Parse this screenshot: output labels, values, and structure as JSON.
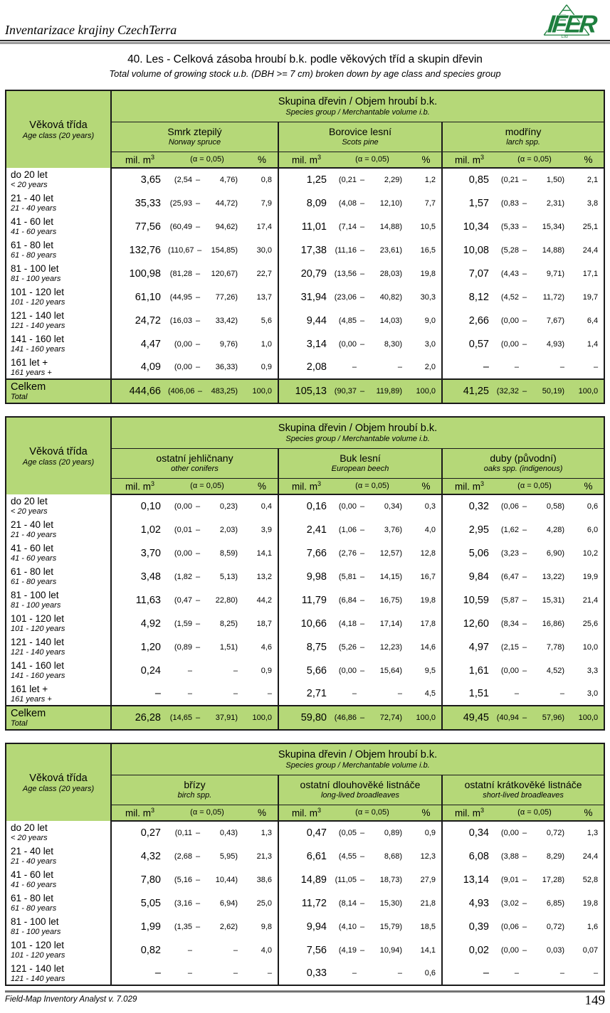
{
  "masthead": {
    "title": "Inventarizace krajiny CzechTerra",
    "logo_text": "IFER",
    "logo_sub": "Ltd"
  },
  "doc": {
    "title": "40. Les - Celková zásoba hroubí b.k. podle věkových tříd a skupin dřevin",
    "subtitle": "Total volume of growing stock u.b. (DBH >= 7 cm) broken down by age class and species group"
  },
  "footer": {
    "left": "Field-Map Inventory Analyst v. 7.029",
    "page_number": "149"
  },
  "colors": {
    "table_green": "#b5d878",
    "logo_green": "#1e7f3e"
  },
  "table_common": {
    "age_header_cs": "Věková třída",
    "age_header_en": "Age class (20 years)",
    "group_header_cs": "Skupina dřevin / Objem hroubí b.k.",
    "group_header_en": "Species group / Merchantable volume i.b.",
    "unit_label": "mil. m",
    "unit_sup": "3",
    "alpha_label": "(α = 0,05)",
    "percent_label": "%",
    "total_cs": "Celkem",
    "total_en": "Total",
    "dash": "–"
  },
  "age_classes": [
    {
      "cs": "do 20 let",
      "en": "< 20 years"
    },
    {
      "cs": "21 - 40 let",
      "en": "21 - 40 years"
    },
    {
      "cs": "41 - 60 let",
      "en": "41 - 60 years"
    },
    {
      "cs": "61 - 80 let",
      "en": "61 - 80 years"
    },
    {
      "cs": "81 - 100 let",
      "en": "81 - 100 years"
    },
    {
      "cs": "101 - 120 let",
      "en": "101 - 120 years"
    },
    {
      "cs": "121 - 140 let",
      "en": "121 - 140 years"
    },
    {
      "cs": "141 - 160 let",
      "en": "141 - 160 years"
    },
    {
      "cs": "161 let +",
      "en": "161 years +"
    }
  ],
  "tables": [
    {
      "groups": [
        {
          "cs": "Smrk ztepilý",
          "en": "Norway spruce"
        },
        {
          "cs": "Borovice lesní",
          "en": "Scots pine"
        },
        {
          "cs": "modříny",
          "en": "larch spp."
        }
      ],
      "rows": [
        {
          "age": 0,
          "cells": [
            [
              "3,65",
              "2,54",
              "4,76",
              "0,8"
            ],
            [
              "1,25",
              "0,21",
              "2,29",
              "1,2"
            ],
            [
              "0,85",
              "0,21",
              "1,50",
              "2,1"
            ]
          ]
        },
        {
          "age": 1,
          "cells": [
            [
              "35,33",
              "25,93",
              "44,72",
              "7,9"
            ],
            [
              "8,09",
              "4,08",
              "12,10",
              "7,7"
            ],
            [
              "1,57",
              "0,83",
              "2,31",
              "3,8"
            ]
          ]
        },
        {
          "age": 2,
          "cells": [
            [
              "77,56",
              "60,49",
              "94,62",
              "17,4"
            ],
            [
              "11,01",
              "7,14",
              "14,88",
              "10,5"
            ],
            [
              "10,34",
              "5,33",
              "15,34",
              "25,1"
            ]
          ]
        },
        {
          "age": 3,
          "cells": [
            [
              "132,76",
              "110,67",
              "154,85",
              "30,0"
            ],
            [
              "17,38",
              "11,16",
              "23,61",
              "16,5"
            ],
            [
              "10,08",
              "5,28",
              "14,88",
              "24,4"
            ]
          ]
        },
        {
          "age": 4,
          "cells": [
            [
              "100,98",
              "81,28",
              "120,67",
              "22,7"
            ],
            [
              "20,79",
              "13,56",
              "28,03",
              "19,8"
            ],
            [
              "7,07",
              "4,43",
              "9,71",
              "17,1"
            ]
          ]
        },
        {
          "age": 5,
          "cells": [
            [
              "61,10",
              "44,95",
              "77,26",
              "13,7"
            ],
            [
              "31,94",
              "23,06",
              "40,82",
              "30,3"
            ],
            [
              "8,12",
              "4,52",
              "11,72",
              "19,7"
            ]
          ]
        },
        {
          "age": 6,
          "cells": [
            [
              "24,72",
              "16,03",
              "33,42",
              "5,6"
            ],
            [
              "9,44",
              "4,85",
              "14,03",
              "9,0"
            ],
            [
              "2,66",
              "0,00",
              "7,67",
              "6,4"
            ]
          ]
        },
        {
          "age": 7,
          "cells": [
            [
              "4,47",
              "0,00",
              "9,76",
              "1,0"
            ],
            [
              "3,14",
              "0,00",
              "8,30",
              "3,0"
            ],
            [
              "0,57",
              "0,00",
              "4,93",
              "1,4"
            ]
          ]
        },
        {
          "age": 8,
          "cells": [
            [
              "4,09",
              "0,00",
              "36,33",
              "0,9"
            ],
            [
              "2,08",
              null,
              null,
              "2,0"
            ],
            [
              "–",
              null,
              null,
              "–"
            ]
          ]
        }
      ],
      "total": {
        "cells": [
          [
            "444,66",
            "406,06",
            "483,25",
            "100,0"
          ],
          [
            "105,13",
            "90,37",
            "119,89",
            "100,0"
          ],
          [
            "41,25",
            "32,32",
            "50,19",
            "100,0"
          ]
        ]
      }
    },
    {
      "groups": [
        {
          "cs": "ostatní jehličnany",
          "en": "other conifers"
        },
        {
          "cs": "Buk lesní",
          "en": "European beech"
        },
        {
          "cs": "duby (původní)",
          "en": "oaks spp. (indigenous)"
        }
      ],
      "rows": [
        {
          "age": 0,
          "cells": [
            [
              "0,10",
              "0,00",
              "0,23",
              "0,4"
            ],
            [
              "0,16",
              "0,00",
              "0,34",
              "0,3"
            ],
            [
              "0,32",
              "0,06",
              "0,58",
              "0,6"
            ]
          ]
        },
        {
          "age": 1,
          "cells": [
            [
              "1,02",
              "0,01",
              "2,03",
              "3,9"
            ],
            [
              "2,41",
              "1,06",
              "3,76",
              "4,0"
            ],
            [
              "2,95",
              "1,62",
              "4,28",
              "6,0"
            ]
          ]
        },
        {
          "age": 2,
          "cells": [
            [
              "3,70",
              "0,00",
              "8,59",
              "14,1"
            ],
            [
              "7,66",
              "2,76",
              "12,57",
              "12,8"
            ],
            [
              "5,06",
              "3,23",
              "6,90",
              "10,2"
            ]
          ]
        },
        {
          "age": 3,
          "cells": [
            [
              "3,48",
              "1,82",
              "5,13",
              "13,2"
            ],
            [
              "9,98",
              "5,81",
              "14,15",
              "16,7"
            ],
            [
              "9,84",
              "6,47",
              "13,22",
              "19,9"
            ]
          ]
        },
        {
          "age": 4,
          "cells": [
            [
              "11,63",
              "0,47",
              "22,80",
              "44,2"
            ],
            [
              "11,79",
              "6,84",
              "16,75",
              "19,8"
            ],
            [
              "10,59",
              "5,87",
              "15,31",
              "21,4"
            ]
          ]
        },
        {
          "age": 5,
          "cells": [
            [
              "4,92",
              "1,59",
              "8,25",
              "18,7"
            ],
            [
              "10,66",
              "4,18",
              "17,14",
              "17,8"
            ],
            [
              "12,60",
              "8,34",
              "16,86",
              "25,6"
            ]
          ]
        },
        {
          "age": 6,
          "cells": [
            [
              "1,20",
              "0,89",
              "1,51",
              "4,6"
            ],
            [
              "8,75",
              "5,26",
              "12,23",
              "14,6"
            ],
            [
              "4,97",
              "2,15",
              "7,78",
              "10,0"
            ]
          ]
        },
        {
          "age": 7,
          "cells": [
            [
              "0,24",
              null,
              null,
              "0,9"
            ],
            [
              "5,66",
              "0,00",
              "15,64",
              "9,5"
            ],
            [
              "1,61",
              "0,00",
              "4,52",
              "3,3"
            ]
          ]
        },
        {
          "age": 8,
          "cells": [
            [
              "–",
              null,
              null,
              "–"
            ],
            [
              "2,71",
              null,
              null,
              "4,5"
            ],
            [
              "1,51",
              null,
              null,
              "3,0"
            ]
          ]
        }
      ],
      "total": {
        "cells": [
          [
            "26,28",
            "14,65",
            "37,91",
            "100,0"
          ],
          [
            "59,80",
            "46,86",
            "72,74",
            "100,0"
          ],
          [
            "49,45",
            "40,94",
            "57,96",
            "100,0"
          ]
        ]
      }
    },
    {
      "groups": [
        {
          "cs": "břízy",
          "en": "birch spp."
        },
        {
          "cs": "ostatní dlouhověké listnáče",
          "en": "long-lived broadleaves"
        },
        {
          "cs": "ostatní krátkověké listnáče",
          "en": "short-lived broadleaves"
        }
      ],
      "rows": [
        {
          "age": 0,
          "cells": [
            [
              "0,27",
              "0,11",
              "0,43",
              "1,3"
            ],
            [
              "0,47",
              "0,05",
              "0,89",
              "0,9"
            ],
            [
              "0,34",
              "0,00",
              "0,72",
              "1,3"
            ]
          ]
        },
        {
          "age": 1,
          "cells": [
            [
              "4,32",
              "2,68",
              "5,95",
              "21,3"
            ],
            [
              "6,61",
              "4,55",
              "8,68",
              "12,3"
            ],
            [
              "6,08",
              "3,88",
              "8,29",
              "24,4"
            ]
          ]
        },
        {
          "age": 2,
          "cells": [
            [
              "7,80",
              "5,16",
              "10,44",
              "38,6"
            ],
            [
              "14,89",
              "11,05",
              "18,73",
              "27,9"
            ],
            [
              "13,14",
              "9,01",
              "17,28",
              "52,8"
            ]
          ]
        },
        {
          "age": 3,
          "cells": [
            [
              "5,05",
              "3,16",
              "6,94",
              "25,0"
            ],
            [
              "11,72",
              "8,14",
              "15,30",
              "21,8"
            ],
            [
              "4,93",
              "3,02",
              "6,85",
              "19,8"
            ]
          ]
        },
        {
          "age": 4,
          "cells": [
            [
              "1,99",
              "1,35",
              "2,62",
              "9,8"
            ],
            [
              "9,94",
              "4,10",
              "15,79",
              "18,5"
            ],
            [
              "0,39",
              "0,06",
              "0,72",
              "1,6"
            ]
          ]
        },
        {
          "age": 5,
          "cells": [
            [
              "0,82",
              null,
              null,
              "4,0"
            ],
            [
              "7,56",
              "4,19",
              "10,94",
              "14,1"
            ],
            [
              "0,02",
              "0,00",
              "0,03",
              "0,07"
            ]
          ]
        },
        {
          "age": 6,
          "cells": [
            [
              "–",
              null,
              null,
              "–"
            ],
            [
              "0,33",
              null,
              null,
              "0,6"
            ],
            [
              "–",
              null,
              null,
              "–"
            ]
          ]
        }
      ],
      "total": null
    }
  ]
}
